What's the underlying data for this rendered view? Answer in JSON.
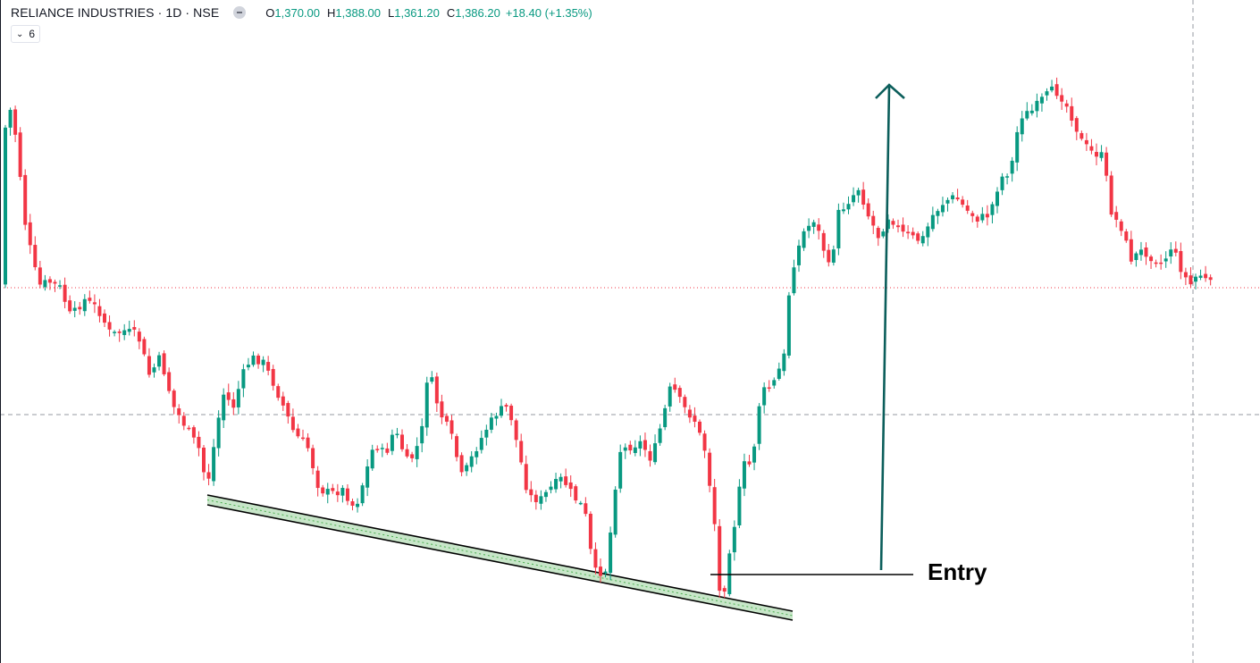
{
  "header": {
    "symbol": "RELIANCE INDUSTRIES · 1D · NSE",
    "open_label": "O",
    "open": "1,370.00",
    "high_label": "H",
    "high": "1,388.00",
    "low_label": "L",
    "low": "1,361.20",
    "close_label": "C",
    "close": "1,386.20",
    "change": "+18.40 (+1.35%)",
    "indicator_count": "6"
  },
  "colors": {
    "up": "#089981",
    "down": "#f23645",
    "arrow": "#0b5e5b",
    "zone_fill": "#c8e6c9",
    "price_line": "#f23645",
    "crosshair": "#9598a1"
  },
  "annotation": {
    "entry_label": "Entry"
  },
  "chart_data": {
    "type": "candlestick",
    "symbol": "RELIANCE INDUSTRIES",
    "interval": "1D",
    "exchange": "NSE",
    "last_bar": {
      "open": 1370.0,
      "high": 1388.0,
      "low": 1361.2,
      "close": 1386.2,
      "change": 18.4,
      "change_pct": 1.35
    },
    "trend": "downtrend, double bottom on support line, breakout rally, then pullback",
    "annotations": [
      "descending support trendline",
      "entry level line",
      "upward target arrow"
    ],
    "price_line_style": "dotted",
    "crosshair_style": "dashed"
  }
}
